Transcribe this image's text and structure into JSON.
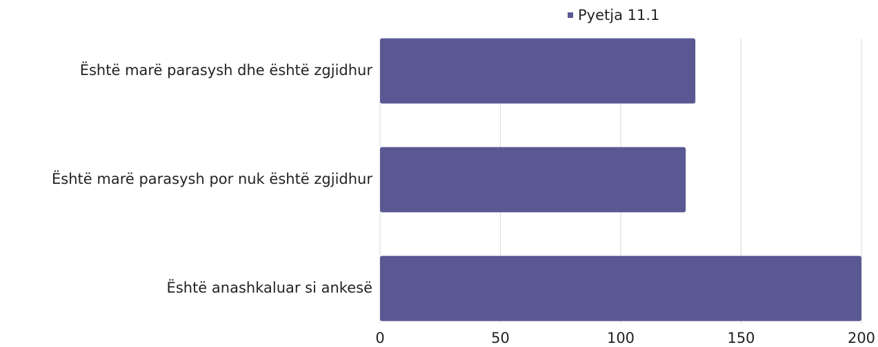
{
  "chart_data": {
    "type": "bar",
    "orientation": "horizontal",
    "categories": [
      "Është marë parasysh dhe është zgjidhur",
      "Është marë parasysh por nuk është zgjidhur",
      "Është anashkaluar si ankesë"
    ],
    "series": [
      {
        "name": "Pyetja 11.1",
        "color": "#5a5893",
        "values": [
          131,
          127,
          200
        ]
      }
    ],
    "xlim": [
      0,
      200
    ],
    "xticks": [
      0,
      50,
      100,
      150,
      200
    ],
    "grid": true,
    "legend": "top"
  }
}
